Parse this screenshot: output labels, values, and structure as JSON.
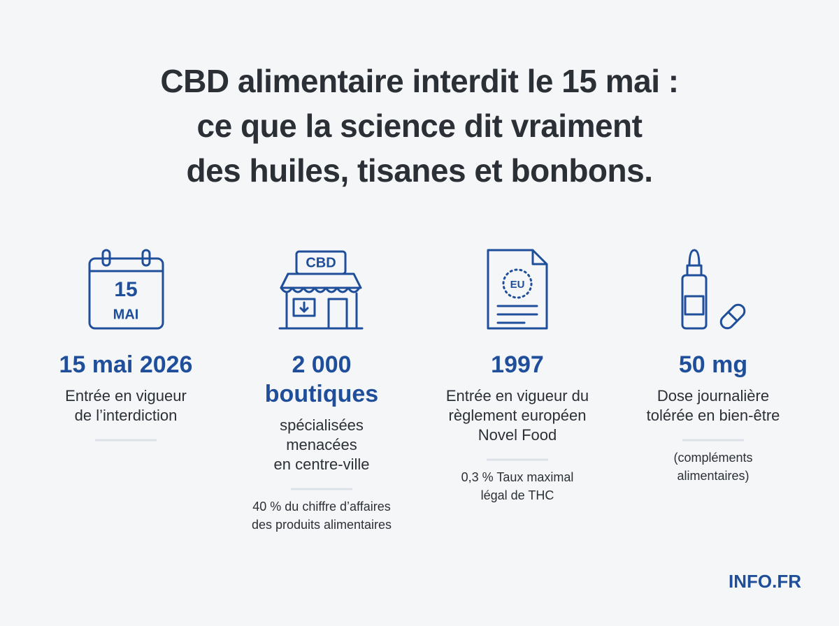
{
  "header": {
    "title": [
      "CBD alimentaire interdit le 15 mai :",
      "ce que la science dit vraiment",
      "des huiles, tisanes et bonbons."
    ]
  },
  "stats": [
    {
      "icon_text": [
        "15",
        "MAI"
      ],
      "value": [
        "15 mai 2026"
      ],
      "description": [
        "Entrée en vigueur",
        "de l’interdiction"
      ],
      "note": []
    },
    {
      "icon_text": [
        "CBD"
      ],
      "value": [
        "2 000",
        "boutiques"
      ],
      "description": [
        "spécialisées",
        "menacées",
        "en centre-ville"
      ],
      "note": [
        "40 % du chiffre d’affaires",
        "des produits alimentaires"
      ]
    },
    {
      "icon_text": [
        "EU"
      ],
      "value": [
        "1997"
      ],
      "description": [
        "Entrée en vigueur du",
        "règlement européen",
        "Novel Food"
      ],
      "note": [
        "0,3 % Taux maximal",
        "légal de THC"
      ]
    },
    {
      "icon_text": [],
      "value": [
        "50 mg"
      ],
      "description": [
        "Dose journalière",
        "tolérée en bien-être"
      ],
      "note": [
        "(compléments",
        "alimentaires)"
      ]
    }
  ],
  "brand": "INFO.FR"
}
